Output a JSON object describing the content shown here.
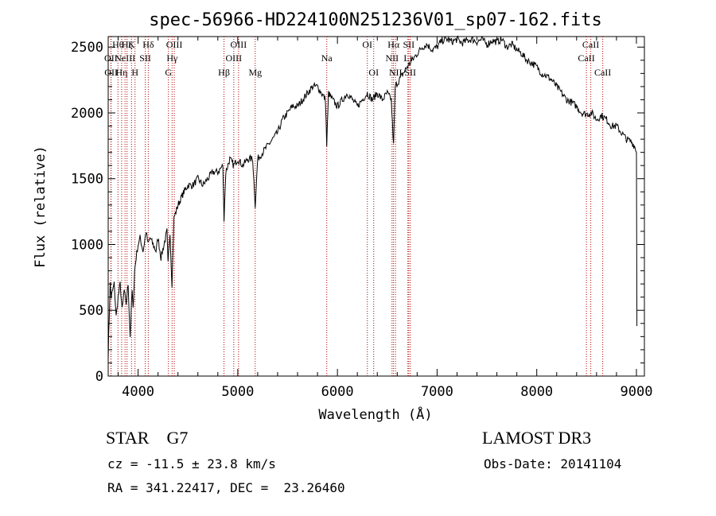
{
  "chart_data": {
    "type": "line",
    "title": "spec-56966-HD224100N251236V01_sp07-162.fits",
    "xlabel": "Wavelength (Å)",
    "ylabel": "Flux (relative)",
    "xlim": [
      3700,
      9080
    ],
    "ylim": [
      0,
      2580
    ],
    "xticks": [
      4000,
      5000,
      6000,
      7000,
      8000,
      9000
    ],
    "yticks": [
      0,
      500,
      1000,
      1500,
      2000,
      2500
    ],
    "grid": false,
    "series": [
      {
        "values_note": "",
        "x": [
          3700,
          3710,
          3720,
          3730,
          3745,
          3760,
          3780,
          3800,
          3820,
          3840,
          3860,
          3880,
          3900,
          3920,
          3940,
          3950,
          3965,
          3980,
          4000,
          4020,
          4050,
          4080,
          4100,
          4120,
          4150,
          4180,
          4200,
          4230,
          4260,
          4290,
          4300,
          4320,
          4340,
          4360,
          4380,
          4400,
          4430,
          4460,
          4500,
          4550,
          4600,
          4650,
          4700,
          4750,
          4800,
          4850,
          4862,
          4880,
          4920,
          4960,
          5000,
          5050,
          5100,
          5150,
          5175,
          5200,
          5250,
          5300,
          5350,
          5400,
          5450,
          5500,
          5550,
          5600,
          5650,
          5700,
          5750,
          5800,
          5840,
          5880,
          5893,
          5910,
          5950,
          6000,
          6050,
          6100,
          6150,
          6200,
          6250,
          6300,
          6350,
          6400,
          6450,
          6500,
          6540,
          6563,
          6580,
          6620,
          6660,
          6700,
          6750,
          6800,
          6850,
          6900,
          6950,
          7000,
          7050,
          7100,
          7150,
          7200,
          7250,
          7300,
          7350,
          7400,
          7450,
          7500,
          7550,
          7600,
          7650,
          7700,
          7750,
          7800,
          7850,
          7900,
          7950,
          8000,
          8050,
          8100,
          8150,
          8200,
          8250,
          8300,
          8350,
          8400,
          8450,
          8500,
          8550,
          8600,
          8650,
          8700,
          8750,
          8800,
          8850,
          8900,
          8950,
          8980,
          9000
        ],
        "y": [
          150,
          450,
          700,
          600,
          650,
          700,
          450,
          600,
          700,
          500,
          650,
          550,
          700,
          300,
          650,
          500,
          800,
          900,
          1000,
          1050,
          950,
          1100,
          1000,
          1050,
          1000,
          950,
          1050,
          900,
          1000,
          1100,
          850,
          1100,
          700,
          1200,
          1250,
          1300,
          1350,
          1400,
          1450,
          1450,
          1500,
          1450,
          1500,
          1550,
          1550,
          1600,
          1200,
          1550,
          1650,
          1600,
          1650,
          1600,
          1650,
          1650,
          1300,
          1650,
          1700,
          1750,
          1800,
          1850,
          1950,
          2000,
          2050,
          2050,
          2100,
          2150,
          2200,
          2200,
          2150,
          2100,
          1750,
          2150,
          2100,
          2050,
          2100,
          2150,
          2100,
          2050,
          2100,
          2150,
          2100,
          2150,
          2100,
          2150,
          2100,
          1750,
          2200,
          2250,
          2300,
          2350,
          2400,
          2450,
          2500,
          2520,
          2480,
          2500,
          2550,
          2560,
          2540,
          2560,
          2530,
          2550,
          2560,
          2540,
          2560,
          2520,
          2550,
          2540,
          2560,
          2500,
          2520,
          2480,
          2450,
          2400,
          2380,
          2350,
          2300,
          2280,
          2250,
          2200,
          2150,
          2100,
          2080,
          2050,
          2000,
          1990,
          2000,
          1950,
          1980,
          1950,
          1900,
          1900,
          1850,
          1800,
          1780,
          1750,
          1700
        ]
      }
    ],
    "line_markers": [
      {
        "x": 3727,
        "label": "OII",
        "row": 1
      },
      {
        "x": 3729,
        "label": "OII",
        "row": 2
      },
      {
        "x": 3798,
        "label": "Hθ",
        "row": 0
      },
      {
        "x": 3835,
        "label": "Hη",
        "row": 2
      },
      {
        "x": 3869,
        "label": "NeIII",
        "row": 1
      },
      {
        "x": 3889,
        "label": "Hζ",
        "row": 0
      },
      {
        "x": 3934,
        "label": "K",
        "row": 0
      },
      {
        "x": 3969,
        "label": "H",
        "row": 2
      },
      {
        "x": 4072,
        "label": "SII",
        "row": 1
      },
      {
        "x": 4102,
        "label": "Hδ",
        "row": 0
      },
      {
        "x": 4304,
        "label": "G",
        "row": 2
      },
      {
        "x": 4341,
        "label": "Hγ",
        "row": 1
      },
      {
        "x": 4363,
        "label": "OIII",
        "row": 0
      },
      {
        "x": 4862,
        "label": "Hβ",
        "row": 2
      },
      {
        "x": 4960,
        "label": "OIII",
        "row": 1
      },
      {
        "x": 5008,
        "label": "OIII",
        "row": 0
      },
      {
        "x": 5175,
        "label": "Mg",
        "row": 2
      },
      {
        "x": 5893,
        "label": "Na",
        "row": 1
      },
      {
        "x": 6300,
        "label": "OI",
        "row": 0
      },
      {
        "x": 6364,
        "label": "OI",
        "row": 2
      },
      {
        "x": 6548,
        "label": "NII",
        "row": 1
      },
      {
        "x": 6563,
        "label": "Hα",
        "row": 0
      },
      {
        "x": 6583,
        "label": "NII",
        "row": 2
      },
      {
        "x": 6707,
        "label": "Li",
        "row": 1
      },
      {
        "x": 6716,
        "label": "SII",
        "row": 0
      },
      {
        "x": 6731,
        "label": "SII",
        "row": 2
      },
      {
        "x": 8498,
        "label": "CaII",
        "row": 1
      },
      {
        "x": 8542,
        "label": "CaII",
        "row": 0
      },
      {
        "x": 8662,
        "label": "CaII",
        "row": 2
      }
    ]
  },
  "info": {
    "class_line": "STAR    G7",
    "survey": "LAMOST DR3",
    "cz_line": "cz = -11.5 ± 23.8 km/s",
    "obs_date_line": "Obs-Date: 20141104",
    "radec_line": "RA = 341.22417, DEC =  23.26460"
  }
}
